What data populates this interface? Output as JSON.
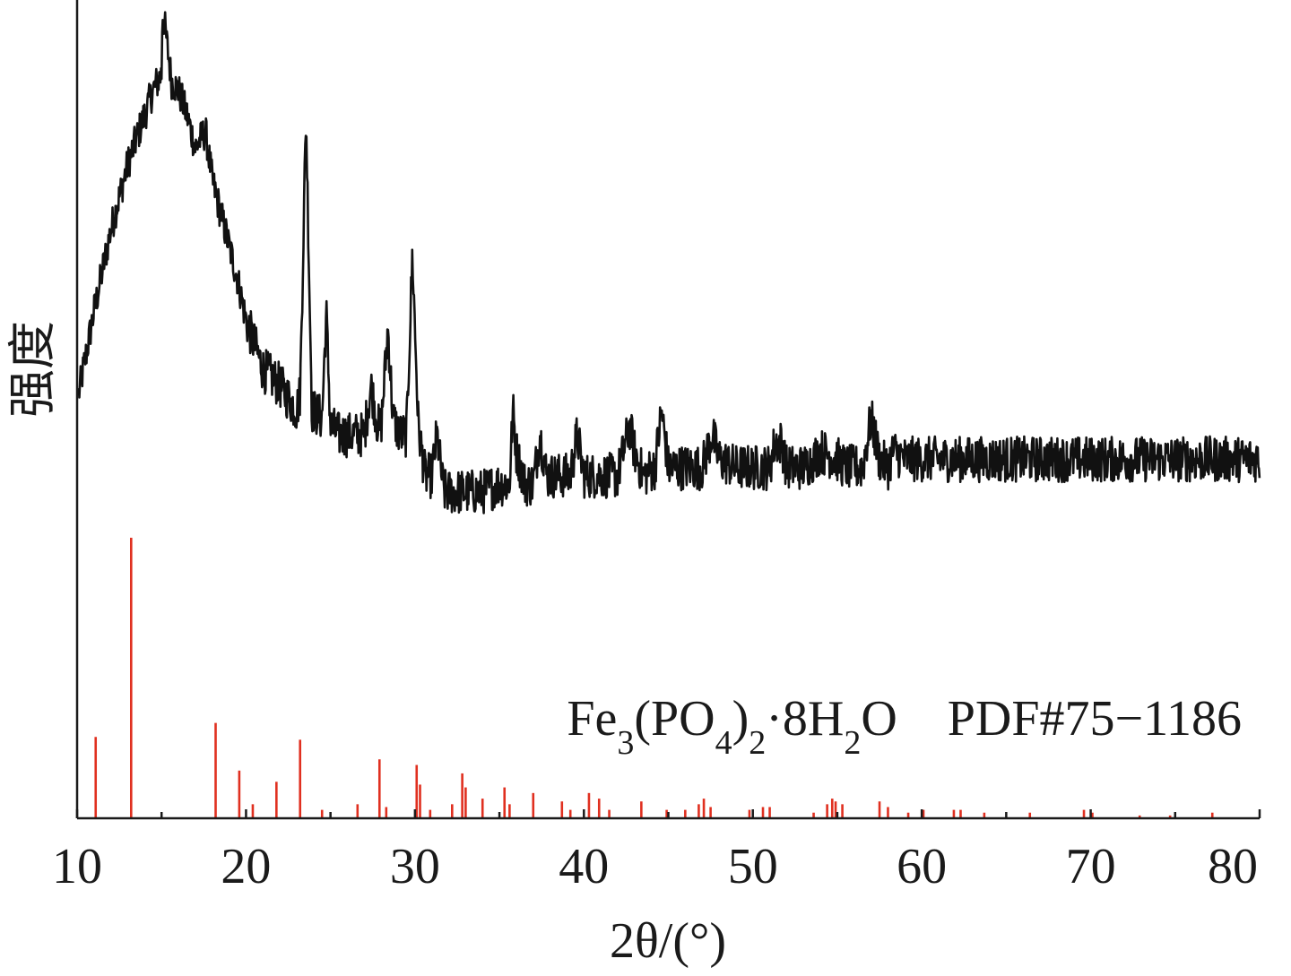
{
  "chart_data": {
    "type": "line",
    "title": "",
    "xlabel": "2θ/(°)",
    "ylabel": "强度",
    "xlim": [
      10,
      80
    ],
    "x_ticks": [
      "10",
      "20",
      "30",
      "40",
      "50",
      "60",
      "70",
      "80"
    ],
    "grid": false,
    "series": [
      {
        "kind": "measured",
        "color": "#111111",
        "x": [
          10.1,
          11,
          12,
          13,
          14,
          14.5,
          15,
          15.05,
          15.3,
          15.6,
          16,
          16.5,
          17,
          17.6,
          18,
          18.5,
          19,
          19.5,
          20,
          21,
          22,
          23,
          23.2,
          23.55,
          23.9,
          24.5,
          24.75,
          25,
          25.5,
          26,
          26.5,
          27,
          27.4,
          27.8,
          28,
          28.4,
          28.7,
          29.1,
          29.5,
          29.85,
          30.2,
          30.6,
          31,
          31.3,
          31.7,
          32,
          33,
          34,
          35,
          35.6,
          35.8,
          36,
          36.5,
          37,
          37.4,
          37.8,
          38.5,
          39.2,
          39.6,
          40,
          41,
          42,
          42.7,
          43,
          43.5,
          44.2,
          44.6,
          45,
          46,
          47,
          47.6,
          48,
          49,
          50,
          51,
          51.3,
          51.7,
          52,
          53,
          53.6,
          54,
          55,
          55.5,
          56.5,
          57,
          57.5,
          58,
          58.3,
          59,
          60,
          62,
          64,
          66,
          68,
          70,
          72,
          74,
          76,
          78,
          80
        ],
        "y": [
          0.52,
          0.62,
          0.72,
          0.8,
          0.86,
          0.89,
          0.91,
          0.99,
          0.95,
          0.9,
          0.89,
          0.86,
          0.82,
          0.84,
          0.78,
          0.74,
          0.7,
          0.66,
          0.61,
          0.55,
          0.53,
          0.5,
          0.52,
          0.86,
          0.5,
          0.49,
          0.62,
          0.48,
          0.47,
          0.47,
          0.47,
          0.47,
          0.53,
          0.48,
          0.48,
          0.6,
          0.49,
          0.47,
          0.47,
          0.69,
          0.48,
          0.42,
          0.42,
          0.47,
          0.4,
          0.4,
          0.4,
          0.4,
          0.41,
          0.41,
          0.5,
          0.45,
          0.41,
          0.41,
          0.47,
          0.42,
          0.42,
          0.42,
          0.47,
          0.42,
          0.42,
          0.42,
          0.48,
          0.45,
          0.42,
          0.43,
          0.5,
          0.43,
          0.43,
          0.43,
          0.47,
          0.44,
          0.43,
          0.43,
          0.43,
          0.46,
          0.46,
          0.43,
          0.43,
          0.44,
          0.45,
          0.44,
          0.43,
          0.43,
          0.49,
          0.44,
          0.43,
          0.45,
          0.44,
          0.44,
          0.44,
          0.44,
          0.44,
          0.44,
          0.44,
          0.44,
          0.44,
          0.44,
          0.44,
          0.44
        ]
      },
      {
        "kind": "reference",
        "name": "Fe3(PO4)2·8H2O   PDF#75−1186",
        "color": "#e03020",
        "x": [
          11.1,
          13.2,
          18.2,
          19.6,
          20.4,
          21.8,
          23.2,
          24.5,
          26.6,
          27.9,
          28.3,
          30.1,
          30.3,
          30.9,
          32.2,
          32.8,
          33.0,
          34.0,
          35.3,
          35.6,
          37.0,
          38.7,
          39.2,
          40.3,
          40.9,
          41.5,
          43.4,
          44.9,
          46.0,
          46.8,
          47.1,
          47.5,
          49.8,
          50.6,
          51.0,
          53.6,
          54.4,
          54.7,
          54.9,
          55.3,
          57.5,
          58.0,
          59.2,
          60.1,
          61.9,
          62.3,
          63.7,
          66.4,
          69.6,
          70.1,
          72.9,
          74.7,
          77.2
        ],
        "y": [
          29,
          100,
          34,
          17,
          5,
          13,
          28,
          3,
          5,
          21,
          4,
          19,
          12,
          3,
          5,
          16,
          11,
          7,
          11,
          5,
          9,
          6,
          3,
          9,
          7,
          3,
          6,
          3,
          3,
          5,
          7,
          4,
          3,
          4,
          4,
          2,
          5,
          7,
          6,
          5,
          6,
          4,
          2,
          3,
          3,
          3,
          2,
          2,
          3,
          2,
          1,
          1,
          2
        ]
      }
    ],
    "annotation": {
      "formula": {
        "parts": [
          "Fe",
          "3",
          "(PO",
          "4",
          ")",
          "2",
          "·8H",
          "2",
          "O"
        ],
        "subscript_parts": [
          1,
          3,
          5,
          7
        ]
      },
      "pdf": "PDF#75−1186"
    }
  }
}
